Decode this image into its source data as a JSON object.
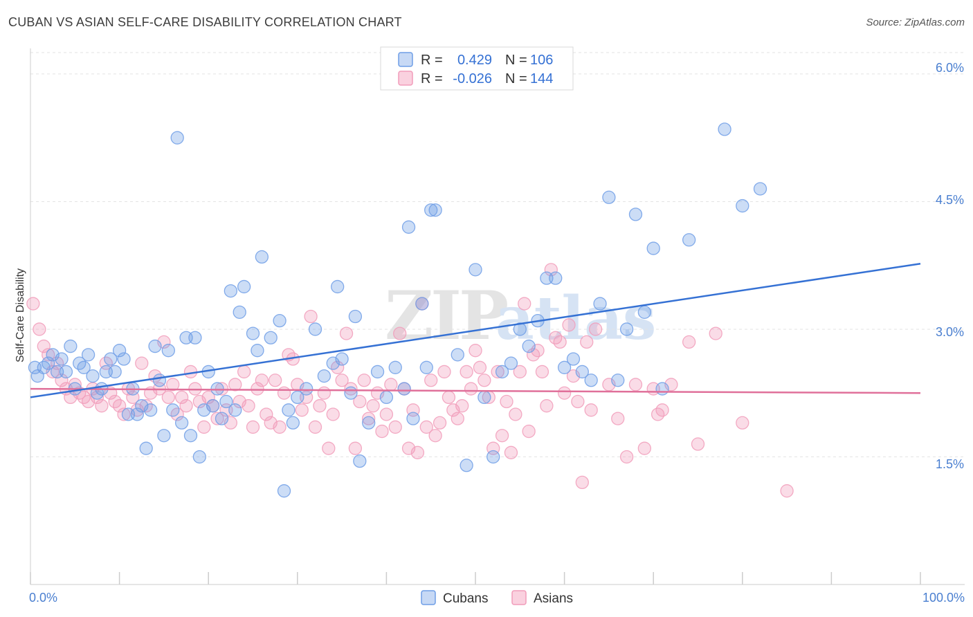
{
  "title": "CUBAN VS ASIAN SELF-CARE DISABILITY CORRELATION CHART",
  "source": "Source: ZipAtlas.com",
  "watermark": {
    "part1": "ZIP",
    "part2": "atlas"
  },
  "chart_data": {
    "type": "scatter",
    "ylabel": "Self-Care Disability",
    "xlim": [
      0,
      100
    ],
    "ylim": [
      0,
      6.3
    ],
    "x_tick_labels": [
      "0.0%",
      "100.0%"
    ],
    "y_ticks": [
      {
        "value": 1.5,
        "label": "1.5%"
      },
      {
        "value": 3.0,
        "label": "3.0%"
      },
      {
        "value": 4.5,
        "label": "4.5%"
      },
      {
        "value": 6.0,
        "label": "6.0%"
      }
    ],
    "legend": {
      "position": "top-center",
      "entries": [
        {
          "r_label": "R =",
          "r_value": "0.429",
          "n_label": "N =",
          "n_value": "106"
        },
        {
          "r_label": "R =",
          "r_value": "-0.026",
          "n_label": "N =",
          "n_value": "144"
        }
      ]
    },
    "bottom_legend": [
      "Cubans",
      "Asians"
    ],
    "colors": {
      "cubans": "#6e9ee6",
      "cubans_line": "#3571d4",
      "asians": "#f19cba",
      "asians_line": "#e0709a",
      "tick": "#4a7fd0"
    },
    "series": [
      {
        "name": "Cubans",
        "trend": {
          "x0": 0,
          "y0": 2.2,
          "x1": 100,
          "y1": 3.77
        },
        "points": [
          [
            0.5,
            2.55
          ],
          [
            0.8,
            2.45
          ],
          [
            1.5,
            2.55
          ],
          [
            2.0,
            2.6
          ],
          [
            2.5,
            2.7
          ],
          [
            3.0,
            2.5
          ],
          [
            3.5,
            2.65
          ],
          [
            4,
            2.5
          ],
          [
            4.5,
            2.8
          ],
          [
            5,
            2.3
          ],
          [
            5.5,
            2.6
          ],
          [
            6,
            2.55
          ],
          [
            6.5,
            2.7
          ],
          [
            7,
            2.45
          ],
          [
            7.5,
            2.25
          ],
          [
            8,
            2.3
          ],
          [
            8.5,
            2.5
          ],
          [
            9,
            2.65
          ],
          [
            9.5,
            2.5
          ],
          [
            10,
            2.75
          ],
          [
            10.5,
            2.65
          ],
          [
            11,
            2.0
          ],
          [
            11.5,
            2.3
          ],
          [
            12,
            2.0
          ],
          [
            12.5,
            2.1
          ],
          [
            13,
            1.6
          ],
          [
            13.5,
            2.05
          ],
          [
            14,
            2.8
          ],
          [
            14.5,
            2.4
          ],
          [
            15,
            1.75
          ],
          [
            15.5,
            2.75
          ],
          [
            16,
            2.05
          ],
          [
            16.5,
            5.25
          ],
          [
            17,
            1.9
          ],
          [
            17.5,
            2.9
          ],
          [
            18,
            1.75
          ],
          [
            18.5,
            2.9
          ],
          [
            19,
            1.5
          ],
          [
            19.5,
            2.05
          ],
          [
            20,
            2.5
          ],
          [
            20.5,
            2.1
          ],
          [
            21,
            2.3
          ],
          [
            21.5,
            1.95
          ],
          [
            22,
            2.15
          ],
          [
            22.5,
            3.45
          ],
          [
            23,
            2.05
          ],
          [
            23.5,
            3.2
          ],
          [
            24,
            3.5
          ],
          [
            25,
            2.95
          ],
          [
            25.5,
            2.75
          ],
          [
            26,
            3.85
          ],
          [
            27,
            2.9
          ],
          [
            28,
            3.1
          ],
          [
            28.5,
            1.1
          ],
          [
            29,
            2.05
          ],
          [
            29.5,
            1.9
          ],
          [
            30,
            2.2
          ],
          [
            31,
            2.3
          ],
          [
            32,
            3.0
          ],
          [
            33,
            2.45
          ],
          [
            34,
            2.6
          ],
          [
            34.5,
            3.5
          ],
          [
            35,
            2.65
          ],
          [
            36,
            2.25
          ],
          [
            36.5,
            3.15
          ],
          [
            37,
            1.45
          ],
          [
            38,
            1.9
          ],
          [
            39,
            2.5
          ],
          [
            40,
            2.2
          ],
          [
            41,
            2.55
          ],
          [
            42,
            2.3
          ],
          [
            42.5,
            4.2
          ],
          [
            43,
            1.95
          ],
          [
            44,
            3.3
          ],
          [
            44.5,
            2.55
          ],
          [
            45,
            4.4
          ],
          [
            45.5,
            4.4
          ],
          [
            48,
            2.7
          ],
          [
            49,
            1.4
          ],
          [
            50,
            3.7
          ],
          [
            51,
            2.2
          ],
          [
            52,
            1.5
          ],
          [
            53,
            2.5
          ],
          [
            54,
            2.6
          ],
          [
            55,
            3.0
          ],
          [
            56,
            2.8
          ],
          [
            57,
            3.1
          ],
          [
            58,
            3.6
          ],
          [
            59,
            3.6
          ],
          [
            60,
            2.55
          ],
          [
            61,
            2.65
          ],
          [
            62,
            2.5
          ],
          [
            63,
            2.4
          ],
          [
            64,
            3.3
          ],
          [
            65,
            4.55
          ],
          [
            66,
            2.4
          ],
          [
            67,
            3.0
          ],
          [
            68,
            4.35
          ],
          [
            69,
            3.2
          ],
          [
            70,
            3.95
          ],
          [
            71,
            2.3
          ],
          [
            74,
            4.05
          ],
          [
            78,
            5.35
          ],
          [
            80,
            4.45
          ],
          [
            82,
            4.65
          ]
        ]
      },
      {
        "name": "Asians",
        "trend": {
          "x0": 0,
          "y0": 2.3,
          "x1": 100,
          "y1": 2.25
        },
        "points": [
          [
            0.3,
            3.3
          ],
          [
            1,
            3.0
          ],
          [
            1.5,
            2.8
          ],
          [
            2,
            2.7
          ],
          [
            2.5,
            2.5
          ],
          [
            3,
            2.6
          ],
          [
            3.5,
            2.4
          ],
          [
            4,
            2.3
          ],
          [
            4.5,
            2.2
          ],
          [
            5,
            2.35
          ],
          [
            5.5,
            2.25
          ],
          [
            6,
            2.2
          ],
          [
            6.5,
            2.15
          ],
          [
            7,
            2.3
          ],
          [
            7.5,
            2.2
          ],
          [
            8,
            2.1
          ],
          [
            8.5,
            2.6
          ],
          [
            9,
            2.25
          ],
          [
            9.5,
            2.15
          ],
          [
            10,
            2.1
          ],
          [
            10.5,
            2.0
          ],
          [
            11,
            2.3
          ],
          [
            11.5,
            2.2
          ],
          [
            12,
            2.05
          ],
          [
            12.5,
            2.6
          ],
          [
            13,
            2.1
          ],
          [
            13.5,
            2.25
          ],
          [
            14,
            2.45
          ],
          [
            14.5,
            2.3
          ],
          [
            15,
            2.85
          ],
          [
            15.5,
            2.2
          ],
          [
            16,
            2.35
          ],
          [
            16.5,
            2.0
          ],
          [
            17,
            2.2
          ],
          [
            17.5,
            2.1
          ],
          [
            18,
            2.5
          ],
          [
            18.5,
            2.3
          ],
          [
            19,
            2.15
          ],
          [
            19.5,
            1.85
          ],
          [
            20,
            2.2
          ],
          [
            20.5,
            2.1
          ],
          [
            21,
            1.95
          ],
          [
            21.5,
            2.3
          ],
          [
            22,
            2.05
          ],
          [
            22.5,
            1.9
          ],
          [
            23,
            2.35
          ],
          [
            23.5,
            2.15
          ],
          [
            24,
            2.5
          ],
          [
            24.5,
            2.1
          ],
          [
            25,
            1.85
          ],
          [
            25.5,
            2.3
          ],
          [
            26,
            2.4
          ],
          [
            26.5,
            2.0
          ],
          [
            27,
            1.9
          ],
          [
            27.5,
            2.4
          ],
          [
            28,
            1.85
          ],
          [
            28.5,
            2.25
          ],
          [
            29,
            2.7
          ],
          [
            29.5,
            2.65
          ],
          [
            30,
            2.35
          ],
          [
            30.5,
            2.05
          ],
          [
            31,
            2.2
          ],
          [
            31.5,
            3.15
          ],
          [
            32,
            1.85
          ],
          [
            32.5,
            2.1
          ],
          [
            33,
            2.25
          ],
          [
            33.5,
            1.6
          ],
          [
            34,
            2.0
          ],
          [
            34.5,
            2.55
          ],
          [
            35,
            2.4
          ],
          [
            35.5,
            2.95
          ],
          [
            36,
            2.3
          ],
          [
            36.5,
            1.6
          ],
          [
            37,
            2.15
          ],
          [
            37.5,
            2.4
          ],
          [
            38,
            1.95
          ],
          [
            38.5,
            2.1
          ],
          [
            39,
            2.25
          ],
          [
            39.5,
            1.8
          ],
          [
            40,
            2.0
          ],
          [
            40.5,
            2.35
          ],
          [
            41,
            1.85
          ],
          [
            41.5,
            2.95
          ],
          [
            42,
            2.3
          ],
          [
            42.5,
            1.6
          ],
          [
            43,
            2.05
          ],
          [
            43.5,
            1.55
          ],
          [
            44,
            3.3
          ],
          [
            44.5,
            1.85
          ],
          [
            45,
            2.4
          ],
          [
            45.5,
            1.75
          ],
          [
            46,
            1.9
          ],
          [
            46.5,
            2.5
          ],
          [
            47,
            2.2
          ],
          [
            47.5,
            2.05
          ],
          [
            48,
            1.95
          ],
          [
            48.5,
            2.1
          ],
          [
            49,
            2.5
          ],
          [
            49.5,
            2.3
          ],
          [
            50,
            2.75
          ],
          [
            50.5,
            2.55
          ],
          [
            51,
            2.4
          ],
          [
            51.5,
            2.2
          ],
          [
            52,
            1.6
          ],
          [
            52.5,
            2.5
          ],
          [
            53,
            1.75
          ],
          [
            53.5,
            2.15
          ],
          [
            54,
            1.55
          ],
          [
            54.5,
            2.0
          ],
          [
            55,
            2.5
          ],
          [
            55.5,
            3.3
          ],
          [
            56,
            1.8
          ],
          [
            56.5,
            2.7
          ],
          [
            57,
            2.75
          ],
          [
            57.5,
            2.5
          ],
          [
            58,
            2.1
          ],
          [
            58.5,
            3.7
          ],
          [
            59,
            2.9
          ],
          [
            59.5,
            2.85
          ],
          [
            60,
            2.25
          ],
          [
            60.5,
            3.05
          ],
          [
            61,
            2.45
          ],
          [
            61.5,
            2.15
          ],
          [
            62,
            1.2
          ],
          [
            62.5,
            2.85
          ],
          [
            63,
            2.05
          ],
          [
            63.5,
            3.0
          ],
          [
            65,
            2.35
          ],
          [
            66,
            1.95
          ],
          [
            67,
            1.5
          ],
          [
            68,
            2.35
          ],
          [
            69,
            1.6
          ],
          [
            70,
            2.3
          ],
          [
            70.5,
            2.0
          ],
          [
            71,
            2.05
          ],
          [
            72,
            2.35
          ],
          [
            74,
            2.85
          ],
          [
            75,
            1.65
          ],
          [
            77,
            2.95
          ],
          [
            80,
            1.9
          ],
          [
            85,
            1.1
          ]
        ]
      }
    ]
  }
}
